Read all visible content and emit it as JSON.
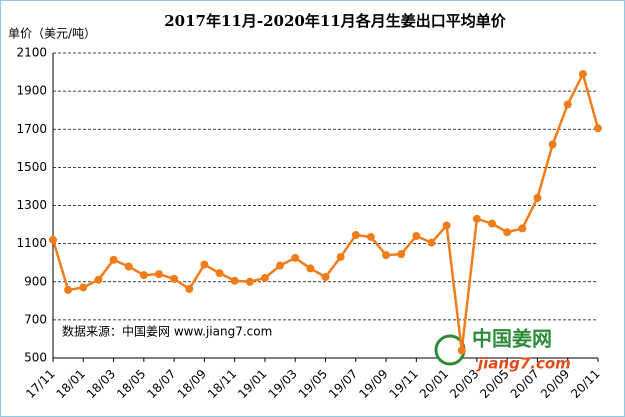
{
  "chart_data": {
    "type": "line",
    "title": "2017年11月-2020年11月各月生姜出口平均单价",
    "y_label": "单价（美元/吨）",
    "annotation": "数据来源：中国姜网 www.jiang7.com",
    "logo": {
      "name": "中国姜网",
      "url": "jiang7.com"
    },
    "categories": [
      "17/11",
      null,
      "18/01",
      null,
      "18/03",
      null,
      "18/05",
      null,
      "18/07",
      null,
      "18/09",
      null,
      "18/11",
      null,
      "19/01",
      null,
      "19/03",
      null,
      "19/05",
      null,
      "19/07",
      null,
      "19/09",
      null,
      "19/11",
      null,
      "20/01",
      null,
      "20/03",
      null,
      "20/05",
      null,
      "20/07",
      null,
      "20/09",
      null,
      "20/11"
    ],
    "series": [
      {
        "name": "单价",
        "color": "#f07d1a",
        "values": [
          1120,
          857,
          870,
          910,
          1015,
          980,
          935,
          940,
          915,
          862,
          990,
          945,
          905,
          900,
          920,
          985,
          1025,
          970,
          925,
          1030,
          1145,
          1135,
          1040,
          1045,
          1140,
          1105,
          1195,
          540,
          1230,
          1205,
          1160,
          1180,
          1340,
          1620,
          1830,
          1990,
          1705
        ]
      }
    ],
    "ylim": [
      500,
      2100
    ],
    "yticks": [
      500,
      700,
      900,
      1100,
      1300,
      1500,
      1700,
      1900,
      2100
    ],
    "grid": true
  }
}
